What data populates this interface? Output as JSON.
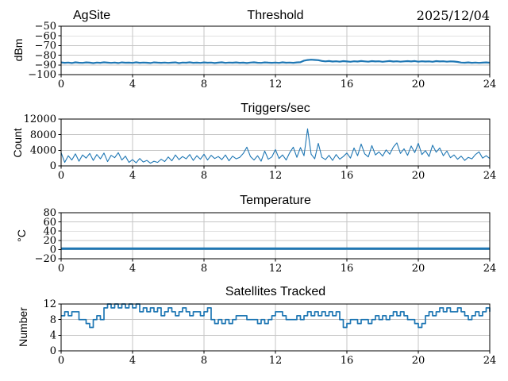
{
  "figure": {
    "background": "#ffffff",
    "date_stamp": "2025/12/04",
    "site_name": "AgSite"
  },
  "colors": {
    "line": "#1f77b4",
    "grid": "#c6c6c6",
    "axis": "#000000",
    "text": "#000000"
  },
  "chart_data": [
    {
      "type": "line",
      "name": "threshold",
      "title_left": "AgSite",
      "title": "Threshold",
      "title_right": "2025/12/04",
      "ylabel": "dBm",
      "xlim": [
        0,
        24
      ],
      "ylim": [
        -100,
        -50
      ],
      "xticks": [
        0,
        4,
        8,
        12,
        16,
        20,
        24
      ],
      "xtick_labels": [
        "0",
        "4",
        "8",
        "12",
        "16",
        "20",
        "24"
      ],
      "yticks": [
        -50,
        -60,
        -70,
        -80,
        -90,
        -100
      ],
      "ytick_labels": [
        "−50",
        "−60",
        "−70",
        "−80",
        "−90",
        "−100"
      ],
      "grid": true,
      "legend": false,
      "line_width": 2.2,
      "step": false,
      "x_start": 0,
      "x_step": 0.2,
      "y": [
        -87.4,
        -87.8,
        -87.5,
        -88.0,
        -87.3,
        -87.7,
        -87.9,
        -87.4,
        -87.6,
        -88.1,
        -87.5,
        -87.8,
        -87.3,
        -87.6,
        -87.9,
        -87.5,
        -88.0,
        -87.4,
        -87.7,
        -87.6,
        -87.9,
        -87.3,
        -87.8,
        -87.5,
        -87.7,
        -88.0,
        -87.4,
        -87.6,
        -87.8,
        -87.5,
        -87.9,
        -87.6,
        -87.4,
        -88.1,
        -87.5,
        -87.7,
        -87.3,
        -87.8,
        -87.6,
        -87.9,
        -87.4,
        -87.7,
        -87.5,
        -88.0,
        -87.6,
        -87.3,
        -87.9,
        -87.5,
        -87.7,
        -87.4,
        -87.8,
        -87.6,
        -88.0,
        -87.5,
        -87.3,
        -87.7,
        -87.9,
        -87.4,
        -87.6,
        -87.8,
        -87.5,
        -87.9,
        -87.3,
        -87.7,
        -87.5,
        -87.8,
        -87.4,
        -87.2,
        -85.6,
        -84.9,
        -84.6,
        -84.8,
        -85.1,
        -85.9,
        -86.3,
        -86.0,
        -86.5,
        -86.2,
        -86.6,
        -86.1,
        -86.4,
        -86.7,
        -86.2,
        -86.5,
        -86.0,
        -86.3,
        -86.6,
        -86.1,
        -86.4,
        -86.2,
        -86.7,
        -86.3,
        -86.0,
        -86.5,
        -86.2,
        -86.6,
        -86.3,
        -86.1,
        -86.4,
        -86.0,
        -86.6,
        -86.2,
        -86.5,
        -86.3,
        -86.7,
        -86.1,
        -86.4,
        -86.2,
        -86.6,
        -86.3,
        -86.5,
        -86.9,
        -87.5,
        -87.7,
        -87.4,
        -87.8,
        -87.5,
        -87.9,
        -87.6,
        -87.4,
        -87.7
      ]
    },
    {
      "type": "line",
      "name": "triggers-per-sec",
      "title": "Triggers/sec",
      "ylabel": "Count",
      "xlim": [
        0,
        24
      ],
      "ylim": [
        0,
        12000
      ],
      "xticks": [
        0,
        4,
        8,
        12,
        16,
        20,
        24
      ],
      "xtick_labels": [
        "0",
        "4",
        "8",
        "12",
        "16",
        "20",
        "24"
      ],
      "yticks": [
        0,
        4000,
        8000,
        12000
      ],
      "ytick_labels": [
        "0",
        "4000",
        "8000",
        "12000"
      ],
      "grid": true,
      "legend": false,
      "line_width": 1.1,
      "step": false,
      "x_start": 0,
      "x_step": 0.2,
      "y": [
        3400,
        900,
        2600,
        1500,
        3100,
        1200,
        2800,
        2000,
        3200,
        1400,
        2900,
        1800,
        3300,
        1100,
        2700,
        2100,
        3400,
        1500,
        2500,
        900,
        1600,
        800,
        1900,
        1000,
        1400,
        700,
        1200,
        900,
        1700,
        1100,
        2300,
        1300,
        2800,
        1600,
        2400,
        1800,
        2900,
        1400,
        2600,
        1700,
        3000,
        1500,
        2700,
        1900,
        2400,
        1600,
        2800,
        1300,
        2500,
        1800,
        2200,
        3200,
        4800,
        2400,
        1500,
        2600,
        1200,
        3800,
        1700,
        2300,
        4200,
        1900,
        2800,
        1500,
        3400,
        4800,
        2200,
        4700,
        2600,
        9500,
        3000,
        1800,
        5800,
        2200,
        1600,
        2700,
        1400,
        2900,
        1700,
        2400,
        3300,
        2000,
        4600,
        2600,
        5600,
        3100,
        2300,
        5200,
        2800,
        3600,
        2500,
        4100,
        3000,
        4800,
        5900,
        3200,
        4400,
        2700,
        5100,
        3400,
        5800,
        2900,
        3900,
        2400,
        5300,
        3500,
        4600,
        2600,
        3800,
        2100,
        2800,
        1700,
        2500,
        1400,
        2200,
        1800,
        2900,
        3600,
        2000,
        2600,
        1900
      ]
    },
    {
      "type": "line",
      "name": "temperature",
      "title": "Temperature",
      "ylabel": "°C",
      "xlim": [
        0,
        24
      ],
      "ylim": [
        -20,
        80
      ],
      "xticks": [
        0,
        4,
        8,
        12,
        16,
        20,
        24
      ],
      "xtick_labels": [
        "0",
        "4",
        "8",
        "12",
        "16",
        "20",
        "24"
      ],
      "yticks": [
        -20,
        0,
        20,
        40,
        60,
        80
      ],
      "ytick_labels": [
        "−20",
        "0",
        "20",
        "40",
        "60",
        "80"
      ],
      "grid": true,
      "legend": false,
      "line_width": 3,
      "step": false,
      "x": [
        0,
        24
      ],
      "y": [
        2,
        2
      ]
    },
    {
      "type": "line",
      "name": "satellites-tracked",
      "title": "Satellites Tracked",
      "ylabel": "Number",
      "xlim": [
        0,
        24
      ],
      "ylim": [
        0,
        12
      ],
      "xticks": [
        0,
        4,
        8,
        12,
        16,
        20,
        24
      ],
      "xtick_labels": [
        "0",
        "4",
        "8",
        "12",
        "16",
        "20",
        "24"
      ],
      "yticks": [
        0,
        4,
        8,
        12
      ],
      "ytick_labels": [
        "0",
        "4",
        "8",
        "12"
      ],
      "grid": true,
      "legend": false,
      "line_width": 1.7,
      "step": true,
      "x_start": 0,
      "x_step": 0.2,
      "y": [
        9,
        10,
        9,
        10,
        10,
        8,
        8,
        7,
        6,
        8,
        9,
        8,
        11,
        12,
        11,
        12,
        11,
        12,
        11,
        12,
        11,
        12,
        10,
        11,
        10,
        11,
        10,
        11,
        9,
        10,
        11,
        10,
        9,
        10,
        11,
        10,
        9,
        10,
        10,
        9,
        10,
        11,
        8,
        7,
        8,
        7,
        8,
        7,
        8,
        9,
        9,
        9,
        8,
        8,
        8,
        7,
        8,
        7,
        8,
        9,
        10,
        10,
        9,
        8,
        8,
        8,
        9,
        8,
        9,
        10,
        9,
        10,
        9,
        10,
        9,
        10,
        9,
        10,
        8,
        6,
        7,
        8,
        8,
        7,
        8,
        8,
        7,
        8,
        9,
        8,
        9,
        8,
        9,
        10,
        9,
        10,
        9,
        8,
        8,
        7,
        6,
        7,
        9,
        10,
        9,
        10,
        11,
        10,
        11,
        10,
        10,
        11,
        10,
        9,
        8,
        9,
        10,
        9,
        10,
        11,
        10
      ]
    }
  ]
}
